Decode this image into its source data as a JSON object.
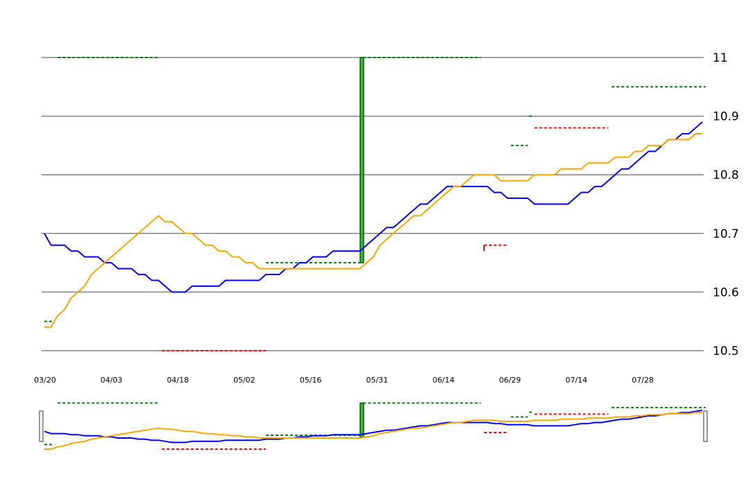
{
  "chart_data": {
    "type": "line",
    "title": "",
    "xlabel": "",
    "ylabel": "",
    "y_axis_position": "right",
    "ylim": [
      10.48,
      11.01
    ],
    "yticks": [
      10.5,
      10.6,
      10.7,
      10.8,
      10.9,
      11
    ],
    "ytick_labels": [
      "10.5",
      "10.6",
      "10.7",
      "10.8",
      "10.9",
      "11"
    ],
    "xlim": [
      "03/20",
      "08/17"
    ],
    "xticks": [
      "03/20",
      "04/03",
      "04/18",
      "05/02",
      "05/16",
      "05/31",
      "06/14",
      "06/29",
      "07/14",
      "07/28"
    ],
    "grid": "horizontal",
    "legend": "none",
    "has_navigator": true,
    "colors": {
      "series_blue": "#0000ff",
      "series_orange": "#ffa500",
      "marker_green": "#008000",
      "marker_red": "#ff0000",
      "bar_fill": "#3cb43c",
      "bar_edge": "#006400",
      "grid": "#808080"
    },
    "series": [
      {
        "color": "#0000ff",
        "x": [
          0,
          1,
          2,
          3,
          4,
          5,
          6,
          7,
          8,
          9,
          10,
          11,
          12,
          13,
          14,
          15,
          16,
          17,
          18,
          19,
          20,
          21,
          22,
          23,
          24,
          25,
          26,
          27,
          28,
          29,
          30,
          31,
          32,
          33,
          34,
          35,
          36,
          37,
          38,
          39,
          40,
          41,
          42,
          43,
          44,
          45,
          46,
          47,
          48,
          49,
          50,
          51,
          52,
          53,
          54,
          55,
          56,
          57,
          58,
          59,
          60,
          61,
          62,
          63,
          64,
          65,
          66,
          67,
          68,
          69,
          70,
          71,
          72,
          73,
          74,
          75,
          76,
          77,
          78,
          79,
          80,
          81,
          82,
          83,
          84,
          85,
          86,
          87,
          88,
          89,
          90,
          91,
          92,
          93,
          94,
          95,
          96,
          97,
          98
        ],
        "values": [
          10.7,
          10.68,
          10.68,
          10.68,
          10.67,
          10.67,
          10.66,
          10.66,
          10.66,
          10.65,
          10.65,
          10.64,
          10.64,
          10.64,
          10.63,
          10.63,
          10.62,
          10.62,
          10.61,
          10.6,
          10.6,
          10.6,
          10.61,
          10.61,
          10.61,
          10.61,
          10.61,
          10.62,
          10.62,
          10.62,
          10.62,
          10.62,
          10.62,
          10.63,
          10.63,
          10.63,
          10.64,
          10.64,
          10.65,
          10.65,
          10.66,
          10.66,
          10.66,
          10.67,
          10.67,
          10.67,
          10.67,
          10.67,
          10.68,
          10.69,
          10.7,
          10.71,
          10.71,
          10.72,
          10.73,
          10.74,
          10.75,
          10.75,
          10.76,
          10.77,
          10.78,
          10.78,
          10.78,
          10.78,
          10.78,
          10.78,
          10.78,
          10.77,
          10.77,
          10.76,
          10.76,
          10.76,
          10.76,
          10.75,
          10.75,
          10.75,
          10.75,
          10.75,
          10.75,
          10.76,
          10.77,
          10.77,
          10.78,
          10.78,
          10.79,
          10.8,
          10.81,
          10.81,
          10.82,
          10.83,
          10.84,
          10.84,
          10.85,
          10.86,
          10.86,
          10.87,
          10.87,
          10.88,
          10.89
        ]
      },
      {
        "color": "#ffa500",
        "x": [
          0,
          1,
          2,
          3,
          4,
          5,
          6,
          7,
          8,
          9,
          10,
          11,
          12,
          13,
          14,
          15,
          16,
          17,
          18,
          19,
          20,
          21,
          22,
          23,
          24,
          25,
          26,
          27,
          28,
          29,
          30,
          31,
          32,
          33,
          34,
          35,
          36,
          37,
          38,
          39,
          40,
          41,
          42,
          43,
          44,
          45,
          46,
          47,
          48,
          49,
          50,
          51,
          52,
          53,
          54,
          55,
          56,
          57,
          58,
          59,
          60,
          61,
          62,
          63,
          64,
          65,
          66,
          67,
          68,
          69,
          70,
          71,
          72,
          73,
          74,
          75,
          76,
          77,
          78,
          79,
          80,
          81,
          82,
          83,
          84,
          85,
          86,
          87,
          88,
          89,
          90,
          91,
          92,
          93,
          94,
          95,
          96,
          97,
          98
        ],
        "values": [
          10.54,
          10.54,
          10.56,
          10.57,
          10.59,
          10.6,
          10.61,
          10.63,
          10.64,
          10.65,
          10.66,
          10.67,
          10.68,
          10.69,
          10.7,
          10.71,
          10.72,
          10.73,
          10.72,
          10.72,
          10.71,
          10.7,
          10.7,
          10.69,
          10.68,
          10.68,
          10.67,
          10.67,
          10.66,
          10.66,
          10.65,
          10.65,
          10.64,
          10.64,
          10.64,
          10.64,
          10.64,
          10.64,
          10.64,
          10.64,
          10.64,
          10.64,
          10.64,
          10.64,
          10.64,
          10.64,
          10.64,
          10.64,
          10.65,
          10.66,
          10.68,
          10.69,
          10.7,
          10.71,
          10.72,
          10.73,
          10.73,
          10.74,
          10.75,
          10.76,
          10.77,
          10.78,
          10.78,
          10.79,
          10.8,
          10.8,
          10.8,
          10.8,
          10.79,
          10.79,
          10.79,
          10.79,
          10.79,
          10.8,
          10.8,
          10.8,
          10.8,
          10.81,
          10.81,
          10.81,
          10.81,
          10.82,
          10.82,
          10.82,
          10.82,
          10.83,
          10.83,
          10.83,
          10.84,
          10.84,
          10.85,
          10.85,
          10.85,
          10.86,
          10.86,
          10.86,
          10.86,
          10.87,
          10.87
        ]
      }
    ],
    "markers": [
      {
        "color": "#008000",
        "x0": 2,
        "x1": 17,
        "y": 11.0
      },
      {
        "color": "#008000",
        "x0": 0,
        "x1": 1.5,
        "y": 10.55
      },
      {
        "color": "#ff0000",
        "x0": 17.5,
        "x1": 33,
        "y": 10.5
      },
      {
        "color": "#008000",
        "x0": 33,
        "x1": 47,
        "y": 10.65
      },
      {
        "color": "#008000",
        "x0": 47.5,
        "x1": 65,
        "y": 11.0
      },
      {
        "color": "#ff0000",
        "x0": 65.5,
        "x1": 69,
        "y": 10.68,
        "tick_to": 10.67
      },
      {
        "color": "#008000",
        "x0": 69.5,
        "x1": 72,
        "y": 10.85
      },
      {
        "color": "#008000",
        "x0": 72.2,
        "x1": 72.8,
        "y": 10.9
      },
      {
        "color": "#ff0000",
        "x0": 73,
        "x1": 84,
        "y": 10.88
      },
      {
        "color": "#008000",
        "x0": 84.5,
        "x1": 98.5,
        "y": 10.95
      }
    ],
    "bars": [
      {
        "x": 47.3,
        "low": 10.65,
        "high": 11.0
      }
    ]
  }
}
